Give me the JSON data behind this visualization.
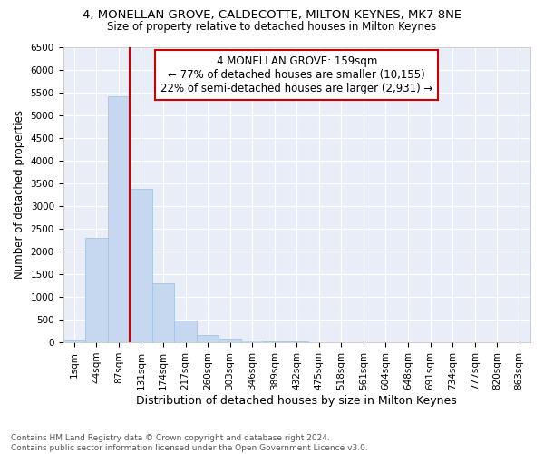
{
  "title_line1": "4, MONELLAN GROVE, CALDECOTTE, MILTON KEYNES, MK7 8NE",
  "title_line2": "Size of property relative to detached houses in Milton Keynes",
  "xlabel": "Distribution of detached houses by size in Milton Keynes",
  "ylabel": "Number of detached properties",
  "footnote": "Contains HM Land Registry data © Crown copyright and database right 2024.\nContains public sector information licensed under the Open Government Licence v3.0.",
  "bar_labels": [
    "1sqm",
    "44sqm",
    "87sqm",
    "131sqm",
    "174sqm",
    "217sqm",
    "260sqm",
    "303sqm",
    "346sqm",
    "389sqm",
    "432sqm",
    "475sqm",
    "518sqm",
    "561sqm",
    "604sqm",
    "648sqm",
    "691sqm",
    "734sqm",
    "777sqm",
    "820sqm",
    "863sqm"
  ],
  "bar_values": [
    70,
    2300,
    5420,
    3380,
    1300,
    480,
    160,
    80,
    50,
    30,
    15,
    8,
    5,
    3,
    2,
    1,
    0,
    0,
    0,
    0,
    0
  ],
  "bar_color": "#c5d8f0",
  "bar_edgecolor": "#9abfdf",
  "background_color": "#e8edf8",
  "grid_color": "#ffffff",
  "annotation_text": "4 MONELLAN GROVE: 159sqm\n← 77% of detached houses are smaller (10,155)\n22% of semi-detached houses are larger (2,931) →",
  "vline_bar_idx": 3,
  "vline_color": "#cc0000",
  "annotation_box_edgecolor": "#cc0000",
  "ylim_max": 6500,
  "yticks": [
    0,
    500,
    1000,
    1500,
    2000,
    2500,
    3000,
    3500,
    4000,
    4500,
    5000,
    5500,
    6000,
    6500
  ],
  "title_fontsize": 9.5,
  "subtitle_fontsize": 8.5,
  "ylabel_fontsize": 8.5,
  "xlabel_fontsize": 9,
  "tick_fontsize": 7.5,
  "annotation_fontsize": 8.5,
  "footnote_fontsize": 6.5
}
